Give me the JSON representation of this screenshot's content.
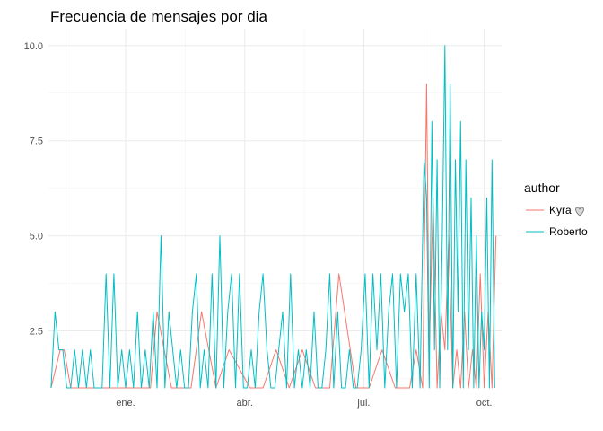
{
  "chart_data": {
    "type": "line",
    "title": "Frecuencia de mensajes  por dia",
    "xlabel": "",
    "ylabel": "",
    "x_ticks": [
      {
        "label": "ene.",
        "date": "2020-01-01"
      },
      {
        "label": "abr.",
        "date": "2020-04-01"
      },
      {
        "label": "jul.",
        "date": "2020-07-01"
      },
      {
        "label": "oct.",
        "date": "2020-10-01"
      }
    ],
    "xlim": [
      "2019-11-03",
      "2020-10-15"
    ],
    "y_ticks": [
      2.5,
      5.0,
      7.5,
      10.0
    ],
    "y_tick_labels": [
      "2.5",
      "5.0",
      "7.5",
      "10.0"
    ],
    "ylim": [
      1,
      10
    ],
    "grid": true,
    "legend": {
      "title": "author",
      "placement": "right",
      "items": [
        {
          "label": "Kyra",
          "color": "#F8766D",
          "icon": "heart-icon"
        },
        {
          "label": "Roberto",
          "color": "#00BFC4"
        }
      ]
    },
    "series": [
      {
        "name": "Kyra",
        "color": "#F8766D",
        "x": [
          "2019-11-05",
          "2019-11-12",
          "2019-11-15",
          "2019-11-20",
          "2019-12-05",
          "2019-12-20",
          "2020-01-05",
          "2020-01-20",
          "2020-01-25",
          "2020-02-05",
          "2020-02-20",
          "2020-02-28",
          "2020-03-10",
          "2020-03-20",
          "2020-04-05",
          "2020-04-15",
          "2020-04-25",
          "2020-05-05",
          "2020-05-15",
          "2020-05-25",
          "2020-06-05",
          "2020-06-12",
          "2020-06-25",
          "2020-07-05",
          "2020-07-15",
          "2020-07-25",
          "2020-08-05",
          "2020-08-10",
          "2020-08-15",
          "2020-08-18",
          "2020-08-20",
          "2020-08-23",
          "2020-08-26",
          "2020-08-29",
          "2020-09-01",
          "2020-09-04",
          "2020-09-07",
          "2020-09-10",
          "2020-09-13",
          "2020-09-16",
          "2020-09-19",
          "2020-09-22",
          "2020-09-25",
          "2020-09-28",
          "2020-10-01",
          "2020-10-04",
          "2020-10-07",
          "2020-10-10"
        ],
        "y": [
          1,
          2,
          2,
          1,
          1,
          1,
          1,
          1,
          3,
          1,
          1,
          3,
          1,
          2,
          1,
          1,
          2,
          1,
          2,
          1,
          1,
          4,
          1,
          1,
          2,
          1,
          1,
          2,
          1,
          9,
          2,
          6,
          1,
          3,
          2,
          5,
          1,
          2,
          1,
          3,
          1,
          2,
          1,
          4,
          1,
          3,
          1,
          5
        ]
      },
      {
        "name": "Roberto",
        "color": "#00BFC4",
        "x": [
          "2019-11-05",
          "2019-11-08",
          "2019-11-11",
          "2019-11-14",
          "2019-11-17",
          "2019-11-20",
          "2019-11-23",
          "2019-11-26",
          "2019-11-29",
          "2019-12-02",
          "2019-12-05",
          "2019-12-08",
          "2019-12-11",
          "2019-12-14",
          "2019-12-17",
          "2019-12-20",
          "2019-12-23",
          "2019-12-26",
          "2019-12-29",
          "2020-01-01",
          "2020-01-04",
          "2020-01-07",
          "2020-01-10",
          "2020-01-13",
          "2020-01-16",
          "2020-01-19",
          "2020-01-22",
          "2020-01-25",
          "2020-01-28",
          "2020-01-31",
          "2020-02-03",
          "2020-02-06",
          "2020-02-09",
          "2020-02-12",
          "2020-02-15",
          "2020-02-18",
          "2020-02-21",
          "2020-02-24",
          "2020-02-27",
          "2020-03-01",
          "2020-03-04",
          "2020-03-07",
          "2020-03-10",
          "2020-03-13",
          "2020-03-16",
          "2020-03-19",
          "2020-03-22",
          "2020-03-25",
          "2020-03-28",
          "2020-03-31",
          "2020-04-03",
          "2020-04-06",
          "2020-04-09",
          "2020-04-12",
          "2020-04-15",
          "2020-04-18",
          "2020-04-21",
          "2020-04-24",
          "2020-04-27",
          "2020-04-30",
          "2020-05-03",
          "2020-05-06",
          "2020-05-09",
          "2020-05-12",
          "2020-05-15",
          "2020-05-18",
          "2020-05-21",
          "2020-05-24",
          "2020-05-27",
          "2020-05-30",
          "2020-06-02",
          "2020-06-05",
          "2020-06-08",
          "2020-06-11",
          "2020-06-14",
          "2020-06-17",
          "2020-06-20",
          "2020-06-23",
          "2020-06-26",
          "2020-06-29",
          "2020-07-02",
          "2020-07-05",
          "2020-07-08",
          "2020-07-11",
          "2020-07-14",
          "2020-07-17",
          "2020-07-20",
          "2020-07-23",
          "2020-07-26",
          "2020-07-29",
          "2020-08-01",
          "2020-08-04",
          "2020-08-07",
          "2020-08-10",
          "2020-08-13",
          "2020-08-16",
          "2020-08-18",
          "2020-08-20",
          "2020-08-22",
          "2020-08-24",
          "2020-08-26",
          "2020-08-28",
          "2020-08-30",
          "2020-09-01",
          "2020-09-03",
          "2020-09-05",
          "2020-09-07",
          "2020-09-09",
          "2020-09-11",
          "2020-09-13",
          "2020-09-15",
          "2020-09-17",
          "2020-09-19",
          "2020-09-21",
          "2020-09-23",
          "2020-09-25",
          "2020-09-27",
          "2020-09-29",
          "2020-10-01",
          "2020-10-03",
          "2020-10-05",
          "2020-10-07",
          "2020-10-09"
        ],
        "y": [
          1,
          3,
          2,
          2,
          1,
          1,
          2,
          1,
          2,
          1,
          2,
          1,
          1,
          1,
          4,
          1,
          4,
          1,
          2,
          1,
          2,
          1,
          3,
          1,
          2,
          1,
          3,
          1,
          5,
          1,
          3,
          2,
          1,
          2,
          1,
          1,
          3,
          4,
          1,
          2,
          1,
          4,
          1,
          5,
          1,
          3,
          4,
          1,
          4,
          1,
          1,
          2,
          1,
          3,
          4,
          2,
          1,
          1,
          2,
          3,
          1,
          4,
          1,
          2,
          1,
          2,
          1,
          3,
          1,
          1,
          2,
          4,
          1,
          3,
          1,
          1,
          2,
          1,
          1,
          2,
          4,
          1,
          4,
          2,
          4,
          1,
          3,
          4,
          1,
          4,
          3,
          4,
          1,
          4,
          1,
          7,
          6,
          1,
          8,
          2,
          7,
          1,
          5,
          10,
          2,
          9,
          1,
          7,
          3,
          8,
          1,
          7,
          2,
          6,
          1,
          5,
          1,
          3,
          2,
          6,
          1,
          7,
          1
        ]
      }
    ]
  }
}
